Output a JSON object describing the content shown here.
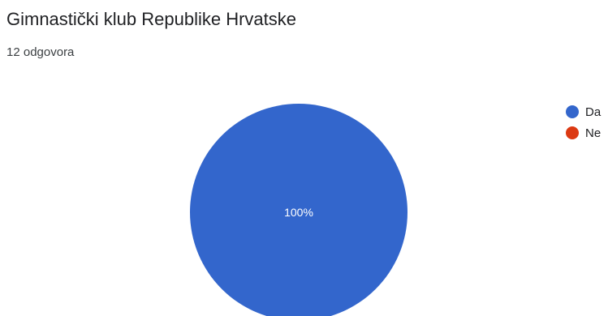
{
  "header": {
    "title": "Gimnastički klub Republike Hrvatske",
    "response_count": "12 odgovora"
  },
  "chart_data": {
    "type": "pie",
    "categories": [
      "Da",
      "Ne"
    ],
    "values": [
      12,
      0
    ],
    "percent_labels": [
      "100%",
      ""
    ],
    "colors": [
      "#3366cc",
      "#dc3912"
    ],
    "legend_position": "right"
  }
}
